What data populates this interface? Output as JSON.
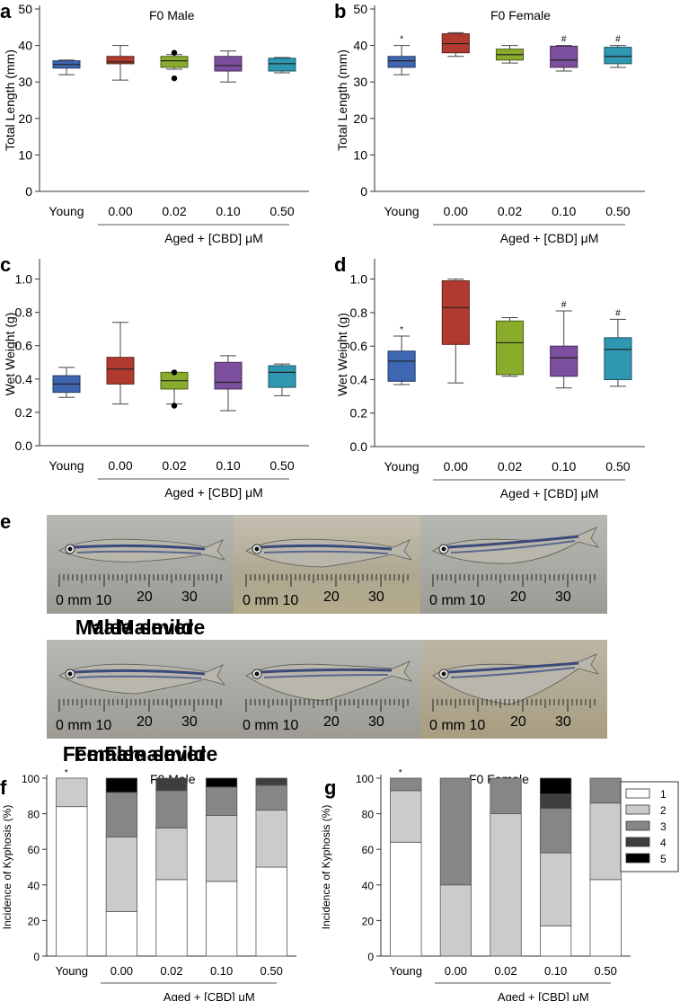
{
  "panel_letters": [
    "a",
    "b",
    "c",
    "d",
    "e",
    "f",
    "g"
  ],
  "photo_section": {
    "row1_captions": [
      "Male",
      "Male - mild",
      "Male - severe"
    ],
    "row2_captions": [
      "Female",
      "Female - mild",
      "Female - severe"
    ],
    "ruler_label": "0 mm 10",
    "ruler_marks": [
      "20",
      "30"
    ]
  },
  "chart_data": [
    {
      "panel": "a",
      "type": "box",
      "title": "F0 Male",
      "ylabel": "Total Length (mm)",
      "ylim": [
        0,
        50
      ],
      "yticks": [
        "0",
        "10",
        "20",
        "30",
        "40",
        "50"
      ],
      "categories": [
        "Young",
        "0.00",
        "0.02",
        "0.10",
        "0.50"
      ],
      "group_label": "Aged + [CBD] μM",
      "colors": [
        "#3f67b1",
        "#b03a2e",
        "#8aac2c",
        "#7b4f9e",
        "#2f97b1"
      ],
      "boxes": [
        {
          "min": 32.0,
          "q1": 33.8,
          "median": 34.8,
          "q3": 35.8,
          "max": 36.0,
          "outliers": [],
          "marker": ""
        },
        {
          "min": 30.5,
          "q1": 35.0,
          "median": 35.5,
          "q3": 37.0,
          "max": 40.0,
          "outliers": [],
          "marker": ""
        },
        {
          "min": 33.5,
          "q1": 34.0,
          "median": 35.8,
          "q3": 37.0,
          "max": 37.5,
          "outliers": [
            31.0,
            38.0
          ],
          "marker": ""
        },
        {
          "min": 30.0,
          "q1": 33.0,
          "median": 34.5,
          "q3": 37.0,
          "max": 38.5,
          "outliers": [],
          "marker": ""
        },
        {
          "min": 32.5,
          "q1": 33.0,
          "median": 35.0,
          "q3": 36.5,
          "max": 36.7,
          "outliers": [],
          "marker": ""
        }
      ]
    },
    {
      "panel": "b",
      "type": "box",
      "title": "F0 Female",
      "ylabel": "Total Length (mm)",
      "ylim": [
        0,
        50
      ],
      "yticks": [
        "0",
        "10",
        "20",
        "30",
        "40",
        "50"
      ],
      "categories": [
        "Young",
        "0.00",
        "0.02",
        "0.10",
        "0.50"
      ],
      "group_label": "Aged + [CBD] μM",
      "colors": [
        "#3f67b1",
        "#b03a2e",
        "#8aac2c",
        "#7b4f9e",
        "#2f97b1"
      ],
      "boxes": [
        {
          "min": 32.0,
          "q1": 34.0,
          "median": 35.8,
          "q3": 37.0,
          "max": 40.0,
          "outliers": [],
          "marker": "*"
        },
        {
          "min": 37.0,
          "q1": 38.0,
          "median": 40.5,
          "q3": 43.2,
          "max": 43.5,
          "outliers": [],
          "marker": ""
        },
        {
          "min": 35.2,
          "q1": 36.0,
          "median": 37.5,
          "q3": 39.0,
          "max": 40.0,
          "outliers": [],
          "marker": ""
        },
        {
          "min": 33.0,
          "q1": 34.0,
          "median": 36.0,
          "q3": 39.8,
          "max": 40.0,
          "outliers": [],
          "marker": "#"
        },
        {
          "min": 34.0,
          "q1": 35.0,
          "median": 37.0,
          "q3": 39.5,
          "max": 40.0,
          "outliers": [],
          "marker": "#"
        }
      ]
    },
    {
      "panel": "c",
      "type": "box",
      "title": "",
      "ylabel": "Wet Weight (g)",
      "ylim": [
        0,
        1.1
      ],
      "yticks": [
        "0.0",
        "0.2",
        "0.4",
        "0.6",
        "0.8",
        "1.0"
      ],
      "categories": [
        "Young",
        "0.00",
        "0.02",
        "0.10",
        "0.50"
      ],
      "group_label": "Aged + [CBD] μM",
      "colors": [
        "#3f67b1",
        "#b03a2e",
        "#8aac2c",
        "#7b4f9e",
        "#2f97b1"
      ],
      "boxes": [
        {
          "min": 0.29,
          "q1": 0.32,
          "median": 0.37,
          "q3": 0.42,
          "max": 0.47,
          "outliers": [],
          "marker": ""
        },
        {
          "min": 0.25,
          "q1": 0.37,
          "median": 0.46,
          "q3": 0.53,
          "max": 0.74,
          "outliers": [],
          "marker": ""
        },
        {
          "min": 0.25,
          "q1": 0.34,
          "median": 0.39,
          "q3": 0.44,
          "max": 0.44,
          "outliers": [
            0.24,
            0.44
          ],
          "marker": ""
        },
        {
          "min": 0.21,
          "q1": 0.34,
          "median": 0.38,
          "q3": 0.5,
          "max": 0.54,
          "outliers": [],
          "marker": ""
        },
        {
          "min": 0.3,
          "q1": 0.35,
          "median": 0.44,
          "q3": 0.48,
          "max": 0.49,
          "outliers": [],
          "marker": ""
        }
      ]
    },
    {
      "panel": "d",
      "type": "box",
      "title": "",
      "ylabel": "Wet Weight (g)",
      "ylim": [
        0,
        1.1
      ],
      "yticks": [
        "0.0",
        "0.2",
        "0.4",
        "0.6",
        "0.8",
        "1.0"
      ],
      "categories": [
        "Young",
        "0.00",
        "0.02",
        "0.10",
        "0.50"
      ],
      "group_label": "Aged + [CBD] μM",
      "colors": [
        "#3f67b1",
        "#b03a2e",
        "#8aac2c",
        "#7b4f9e",
        "#2f97b1"
      ],
      "boxes": [
        {
          "min": 0.37,
          "q1": 0.39,
          "median": 0.51,
          "q3": 0.57,
          "max": 0.66,
          "outliers": [],
          "marker": "*"
        },
        {
          "min": 0.38,
          "q1": 0.61,
          "median": 0.83,
          "q3": 0.99,
          "max": 1.0,
          "outliers": [],
          "marker": ""
        },
        {
          "min": 0.42,
          "q1": 0.43,
          "median": 0.62,
          "q3": 0.75,
          "max": 0.77,
          "outliers": [],
          "marker": ""
        },
        {
          "min": 0.35,
          "q1": 0.42,
          "median": 0.53,
          "q3": 0.6,
          "max": 0.81,
          "outliers": [],
          "marker": "#"
        },
        {
          "min": 0.36,
          "q1": 0.4,
          "median": 0.58,
          "q3": 0.65,
          "max": 0.76,
          "outliers": [],
          "marker": "#"
        }
      ]
    },
    {
      "panel": "f",
      "type": "stacked-bar",
      "title": "F0 Male",
      "ylabel": "Incidence of Kyphosis (%)",
      "ylim": [
        0,
        100
      ],
      "yticks": [
        "0",
        "20",
        "40",
        "60",
        "80",
        "100"
      ],
      "categories": [
        "Young",
        "0.00",
        "0.02",
        "0.10",
        "0.50"
      ],
      "group_label": "Aged + [CBD] μM",
      "markers": [
        "*",
        "",
        "",
        "",
        ""
      ],
      "series": [
        {
          "name": "1",
          "color": "#ffffff",
          "values": [
            84,
            25,
            43,
            42,
            50
          ]
        },
        {
          "name": "2",
          "color": "#cbcbcb",
          "values": [
            16,
            42,
            29,
            37,
            32
          ]
        },
        {
          "name": "3",
          "color": "#868686",
          "values": [
            0,
            25,
            21,
            16,
            14
          ]
        },
        {
          "name": "4",
          "color": "#3e3e3e",
          "values": [
            0,
            0,
            7,
            0,
            4
          ]
        },
        {
          "name": "5",
          "color": "#000000",
          "values": [
            0,
            8,
            0,
            5,
            0
          ]
        }
      ]
    },
    {
      "panel": "g",
      "type": "stacked-bar",
      "title": "F0 Female",
      "ylabel": "Incidence of Kyphosis (%)",
      "ylim": [
        0,
        100
      ],
      "yticks": [
        "0",
        "20",
        "40",
        "60",
        "80",
        "100"
      ],
      "categories": [
        "Young",
        "0.00",
        "0.02",
        "0.10",
        "0.50"
      ],
      "group_label": "Aged + [CBD] μM",
      "markers": [
        "*",
        "",
        "",
        "",
        ""
      ],
      "legend": [
        "1",
        "2",
        "3",
        "4",
        "5"
      ],
      "series": [
        {
          "name": "1",
          "color": "#ffffff",
          "values": [
            64,
            0,
            0,
            17,
            43
          ]
        },
        {
          "name": "2",
          "color": "#cbcbcb",
          "values": [
            29,
            40,
            80,
            41,
            43
          ]
        },
        {
          "name": "3",
          "color": "#868686",
          "values": [
            7,
            60,
            20,
            25,
            14
          ]
        },
        {
          "name": "4",
          "color": "#3e3e3e",
          "values": [
            0,
            0,
            0,
            8,
            0
          ]
        },
        {
          "name": "5",
          "color": "#000000",
          "values": [
            0,
            0,
            0,
            9,
            0
          ]
        }
      ]
    }
  ]
}
